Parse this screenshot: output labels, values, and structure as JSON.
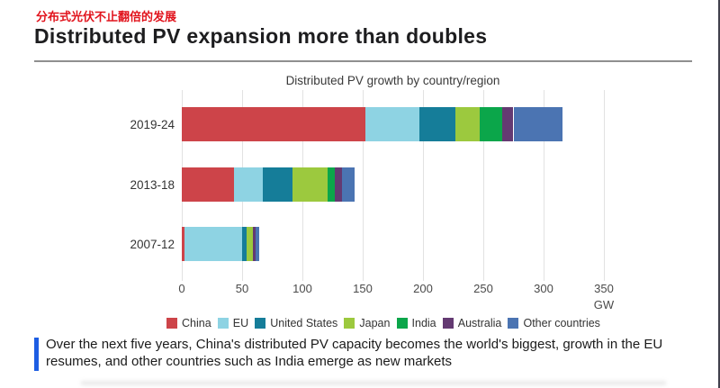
{
  "page": {
    "subtitle_zh": "分布式光伏不止翻倍的发展",
    "title": "Distributed PV expansion more than doubles",
    "caption": "Over the next five years, China's distributed PV capacity becomes the world's biggest, growth in the EU resumes, and other countries such as India emerge as new markets",
    "colors": {
      "subtitle_red": "#e1131c",
      "caption_bar_blue": "#1d5de3"
    }
  },
  "chart_data": {
    "type": "bar",
    "orientation": "horizontal",
    "stacked": true,
    "title": "Distributed PV growth by country/region",
    "unit": "GW",
    "xlabel": "GW",
    "xlim": [
      0,
      350
    ],
    "x_ticks": [
      0,
      50,
      100,
      150,
      200,
      250,
      300,
      350
    ],
    "grid": true,
    "legend_position": "bottom",
    "categories": [
      "2019-24",
      "2013-18",
      "2007-12"
    ],
    "series": [
      {
        "name": "China",
        "color": "#cd4449",
        "values": [
          152,
          43,
          2
        ]
      },
      {
        "name": "EU",
        "color": "#8ed3e3",
        "values": [
          45,
          24,
          48
        ]
      },
      {
        "name": "United States",
        "color": "#157d99",
        "values": [
          30,
          25,
          4
        ]
      },
      {
        "name": "Japan",
        "color": "#9cc93e",
        "values": [
          20,
          29,
          5
        ]
      },
      {
        "name": "India",
        "color": "#0ba64a",
        "values": [
          19,
          6,
          0
        ]
      },
      {
        "name": "Australia",
        "color": "#643a72",
        "values": [
          9,
          6,
          2.5
        ]
      },
      {
        "name": "Other countries",
        "color": "#4b74b2",
        "values": [
          41,
          10,
          3
        ]
      }
    ],
    "totals_gw": [
      316,
      143,
      64.5
    ]
  }
}
